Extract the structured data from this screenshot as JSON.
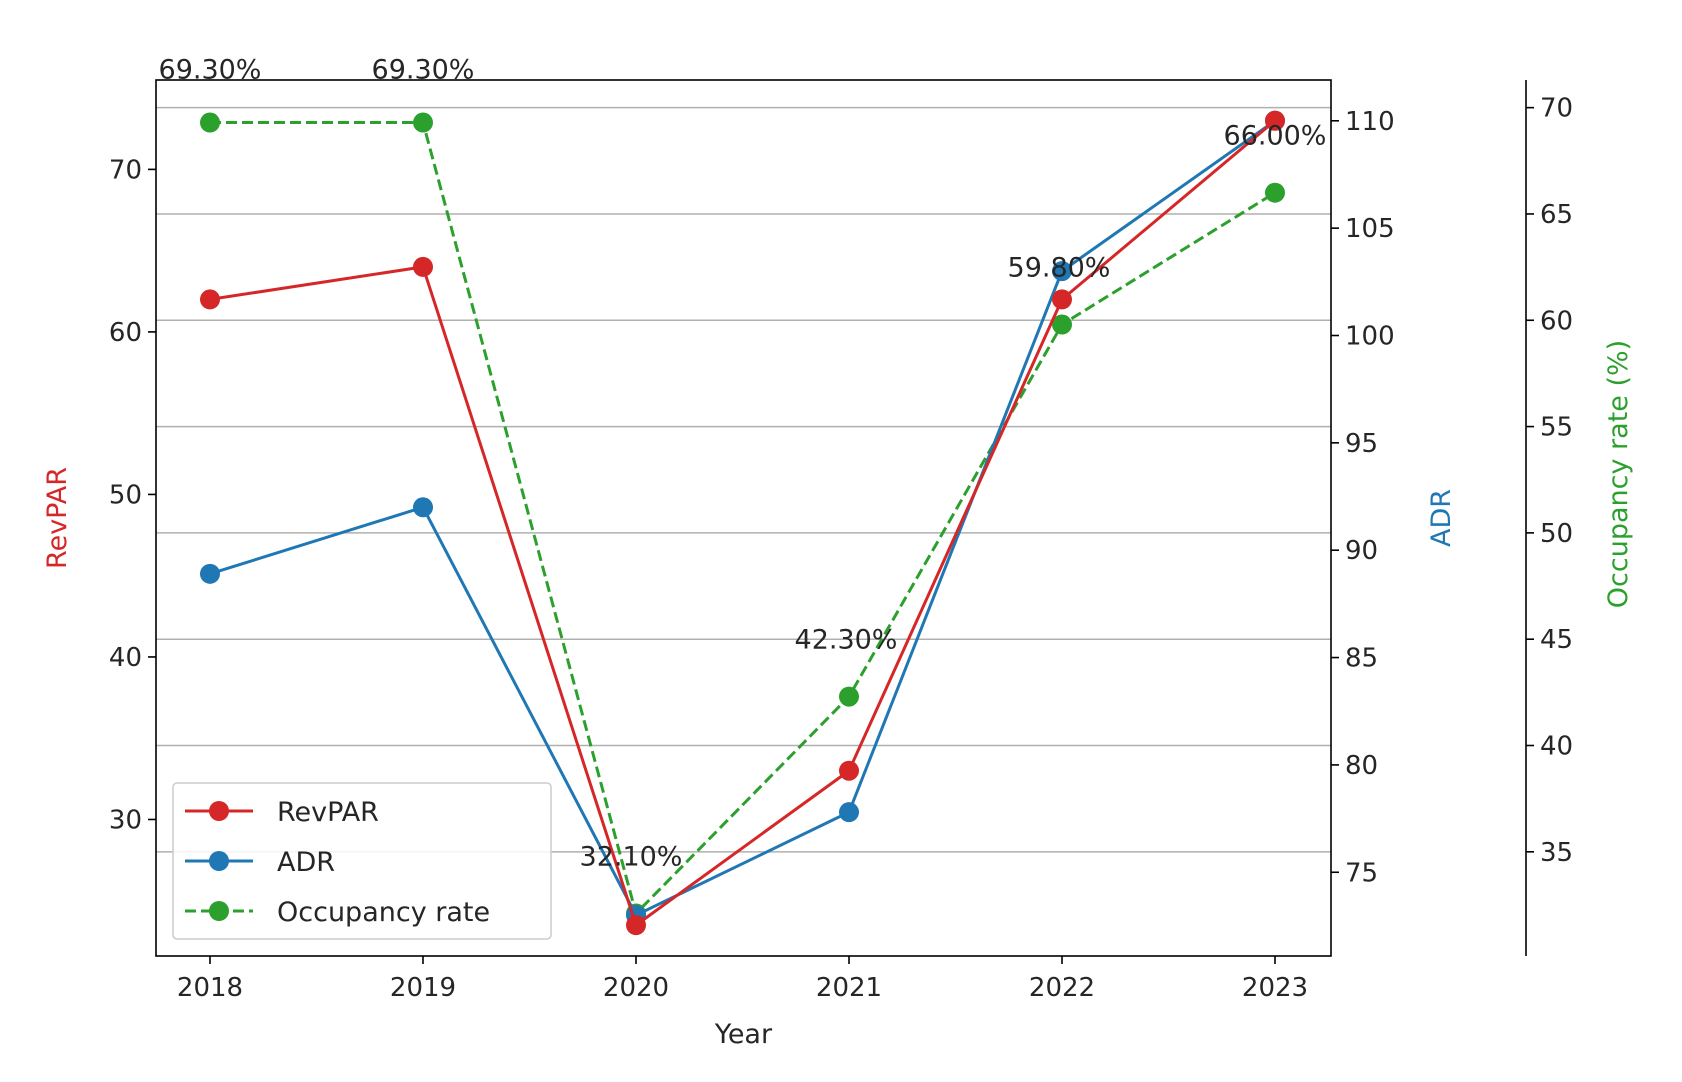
{
  "chart_data": {
    "type": "line",
    "title": "",
    "x": [
      "2018",
      "2019",
      "2020",
      "2021",
      "2022",
      "2023"
    ],
    "xlabel": "Year",
    "axes": {
      "left": {
        "label": "RevPAR",
        "color": "#d62728",
        "lim": [
          21.6,
          75.5
        ],
        "ticks": [
          30,
          40,
          50,
          60,
          70
        ]
      },
      "right": {
        "label": "ADR",
        "color": "#1f77b4",
        "lim": [
          71.1,
          111.9
        ],
        "ticks": [
          75,
          80,
          85,
          90,
          95,
          100,
          105,
          110
        ]
      },
      "right2": {
        "label": "Occupancy rate (%)",
        "color": "#2ca02c",
        "lim": [
          30.1,
          71.3
        ],
        "ticks": [
          35,
          40,
          45,
          50,
          55,
          60,
          65,
          70
        ]
      }
    },
    "series": [
      {
        "name": "RevPAR",
        "axis": "left",
        "color": "#d62728",
        "dash": false,
        "values": [
          62.0,
          64.0,
          23.5,
          33.0,
          62.0,
          73.0
        ]
      },
      {
        "name": "ADR",
        "axis": "right",
        "color": "#1f77b4",
        "dash": false,
        "values": [
          88.9,
          92.0,
          73.0,
          77.8,
          103.0,
          110.0
        ]
      },
      {
        "name": "Occupancy rate",
        "axis": "right2",
        "color": "#2ca02c",
        "dash": true,
        "values": [
          69.3,
          69.3,
          32.1,
          42.3,
          59.8,
          66.0
        ]
      }
    ],
    "annotations": [
      "69.30%",
      "69.30%",
      "32.10%",
      "42.30%",
      "59.80%",
      "66.00%"
    ],
    "grid": "horizontal",
    "legend": {
      "placement": "lower-left"
    }
  }
}
